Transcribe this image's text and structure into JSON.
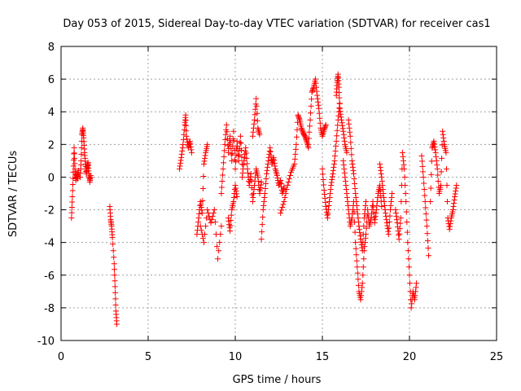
{
  "chart_data": {
    "type": "scatter",
    "title": "Day 053 of 2015, Sidereal Day-to-day VTEC variation (SDTVAR) for receiver cas1",
    "xlabel": "GPS time / hours",
    "ylabel": "SDTVAR / TECUs",
    "xlim": [
      0,
      25
    ],
    "ylim": [
      -10,
      8
    ],
    "xticks": [
      "0",
      "5",
      "10",
      "15",
      "20",
      "25"
    ],
    "yticks": [
      "-10",
      "-8",
      "-6",
      "-4",
      "-2",
      "0",
      "2",
      "4",
      "6",
      "8"
    ],
    "xtick_values": [
      0,
      5,
      10,
      15,
      20,
      25
    ],
    "ytick_values": [
      -10,
      -8,
      -6,
      -4,
      -2,
      0,
      2,
      4,
      6,
      8
    ],
    "grid": true,
    "marker": "+",
    "marker_color": "#ff0000",
    "tracks": [
      {
        "x": [
          0.6,
          0.65,
          0.7,
          0.75,
          0.8,
          0.85,
          0.9,
          0.95,
          1.0
        ],
        "y": [
          -2.5,
          -1.2,
          0.3,
          1.8,
          0.5,
          -0.2,
          0.2,
          -0.1,
          0.4
        ]
      },
      {
        "x": [
          1.1,
          1.15,
          1.2,
          1.25,
          1.3,
          1.35,
          1.4,
          1.45,
          1.5,
          1.55,
          1.6,
          1.65,
          1.7
        ],
        "y": [
          0.0,
          1.0,
          2.6,
          3.0,
          2.4,
          1.5,
          0.8,
          0.2,
          0.6,
          0.9,
          0.2,
          -0.3,
          0.1
        ]
      },
      {
        "x": [
          2.8,
          2.85,
          2.9,
          2.95,
          3.05,
          3.1,
          3.15,
          3.2
        ],
        "y": [
          -1.8,
          -2.6,
          -3.0,
          -3.7,
          -5.3,
          -6.7,
          -8.2,
          -9.0
        ]
      },
      {
        "x": [
          6.8,
          6.9,
          7.0,
          7.1,
          7.15,
          7.2,
          7.3,
          7.4,
          7.5
        ],
        "y": [
          0.5,
          1.2,
          2.0,
          3.2,
          3.8,
          2.5,
          1.8,
          2.2,
          1.5
        ]
      },
      {
        "x": [
          7.8,
          7.9,
          8.0,
          8.1,
          8.2,
          8.3,
          8.4
        ],
        "y": [
          -3.5,
          -2.5,
          -1.5,
          -2.2,
          0.8,
          1.5,
          2.0
        ]
      },
      {
        "x": [
          8.0,
          8.2,
          8.4,
          8.6,
          8.8,
          9.0,
          9.2
        ],
        "y": [
          -3.0,
          -4.0,
          -2.0,
          -2.8,
          -2.0,
          -5.0,
          -3.0
        ]
      },
      {
        "x": [
          9.2,
          9.3,
          9.4,
          9.5,
          9.6,
          9.7,
          9.8,
          9.9,
          10.0,
          10.1,
          10.2,
          10.3,
          10.4
        ],
        "y": [
          -1.0,
          0.5,
          2.0,
          3.2,
          1.5,
          2.5,
          1.0,
          2.8,
          0.5,
          2.2,
          1.0,
          2.5,
          0.8
        ]
      },
      {
        "x": [
          9.6,
          9.7,
          9.8,
          9.9,
          10.0,
          10.1
        ],
        "y": [
          -2.5,
          -3.3,
          -2.0,
          -1.5,
          -0.5,
          -1.2
        ]
      },
      {
        "x": [
          10.4,
          10.5,
          10.6,
          10.7,
          10.8,
          10.9,
          11.0,
          11.1,
          11.2,
          11.3,
          11.4,
          11.5
        ],
        "y": [
          0.0,
          1.0,
          1.8,
          0.5,
          -0.5,
          0.2,
          -1.5,
          -0.5,
          0.5,
          0.0,
          -1.0,
          -0.3
        ]
      },
      {
        "x": [
          11.0,
          11.1,
          11.2,
          11.3,
          11.4
        ],
        "y": [
          2.5,
          3.5,
          4.8,
          3.0,
          2.6
        ]
      },
      {
        "x": [
          11.5,
          11.6,
          11.7,
          11.8,
          11.9,
          12.0,
          12.1,
          12.2,
          12.3,
          12.4,
          12.5,
          12.6,
          12.7,
          12.8
        ],
        "y": [
          -3.8,
          -2.0,
          -1.0,
          0.2,
          1.0,
          1.8,
          0.8,
          1.2,
          0.5,
          0.1,
          -0.5,
          -0.2,
          -1.0,
          -0.6
        ]
      },
      {
        "x": [
          12.6,
          12.8,
          13.0,
          13.2,
          13.4,
          13.5,
          13.6,
          13.7,
          13.8,
          13.9,
          14.0,
          14.1,
          14.2
        ],
        "y": [
          -2.2,
          -1.5,
          -0.5,
          0.3,
          0.8,
          2.0,
          3.8,
          3.5,
          3.0,
          2.7,
          2.5,
          2.2,
          1.8
        ]
      },
      {
        "x": [
          14.2,
          14.3,
          14.4,
          14.5,
          14.6,
          14.7,
          14.8,
          14.9,
          15.0,
          15.1,
          15.2
        ],
        "y": [
          2.0,
          3.5,
          5.2,
          5.5,
          6.0,
          5.0,
          4.2,
          3.0,
          2.5,
          2.9,
          3.2
        ]
      },
      {
        "x": [
          15.0,
          15.1,
          15.2,
          15.3,
          15.4,
          15.5,
          15.6,
          15.7,
          15.8,
          15.9,
          16.0
        ],
        "y": [
          0.5,
          -0.8,
          -1.8,
          -2.5,
          -1.5,
          -0.5,
          0.2,
          1.0,
          2.2,
          3.5,
          4.5
        ]
      },
      {
        "x": [
          15.8,
          15.85,
          15.9,
          15.95,
          16.0,
          16.1,
          16.2,
          16.3,
          16.4
        ],
        "y": [
          5.0,
          5.8,
          6.3,
          5.5,
          4.2,
          3.5,
          2.8,
          2.0,
          1.5
        ]
      },
      {
        "x": [
          16.2,
          16.3,
          16.4,
          16.5,
          16.6,
          16.7,
          16.8,
          16.9,
          17.0,
          17.1,
          17.2,
          17.3,
          17.4,
          17.5,
          17.6,
          17.7,
          17.8,
          17.9,
          18.0,
          18.1,
          18.2,
          18.3,
          18.4
        ],
        "y": [
          1.0,
          0.0,
          -1.0,
          -2.0,
          -3.0,
          -2.5,
          -1.5,
          -4.0,
          -5.5,
          -7.0,
          -7.5,
          -6.5,
          -4.5,
          -3.5,
          -2.0,
          -3.0,
          -2.5,
          -1.5,
          -2.8,
          -2.0,
          -1.0,
          -0.5,
          -1.8
        ]
      },
      {
        "x": [
          16.5,
          16.6,
          16.7,
          16.8,
          16.9,
          17.0,
          17.1,
          17.2,
          17.3,
          17.4,
          17.5
        ],
        "y": [
          3.5,
          2.5,
          1.0,
          0.2,
          -1.0,
          -2.0,
          -3.0,
          -3.8,
          -4.5,
          -2.5,
          -1.5
        ]
      },
      {
        "x": [
          18.3,
          18.4,
          18.5,
          18.6,
          18.7,
          18.8,
          18.9,
          19.0
        ],
        "y": [
          0.8,
          0.0,
          -1.0,
          -2.0,
          -2.8,
          -3.5,
          -2.0,
          -1.0
        ]
      },
      {
        "x": [
          19.2,
          19.3,
          19.4,
          19.5,
          19.6,
          19.7,
          19.8,
          19.9,
          20.0,
          20.1,
          20.2,
          20.3,
          20.4
        ],
        "y": [
          -2.0,
          -2.8,
          -3.8,
          -2.5,
          1.5,
          0.5,
          -1.5,
          -4.0,
          -6.0,
          -8.0,
          -7.0,
          -7.5,
          -6.5
        ]
      },
      {
        "x": [
          20.7,
          20.8,
          20.9,
          21.0,
          21.1
        ],
        "y": [
          1.3,
          0.0,
          -1.5,
          -3.0,
          -4.8
        ]
      },
      {
        "x": [
          21.2,
          21.3,
          21.4,
          21.5,
          21.6,
          21.7,
          21.8,
          21.9,
          22.0,
          22.1,
          22.2,
          22.3,
          22.4,
          22.5,
          22.6,
          22.7
        ],
        "y": [
          -1.5,
          1.8,
          2.2,
          1.5,
          0.5,
          -1.0,
          -0.5,
          2.8,
          2.0,
          1.5,
          -2.5,
          -3.2,
          -2.5,
          -2.0,
          -1.2,
          -0.5
        ]
      }
    ]
  }
}
